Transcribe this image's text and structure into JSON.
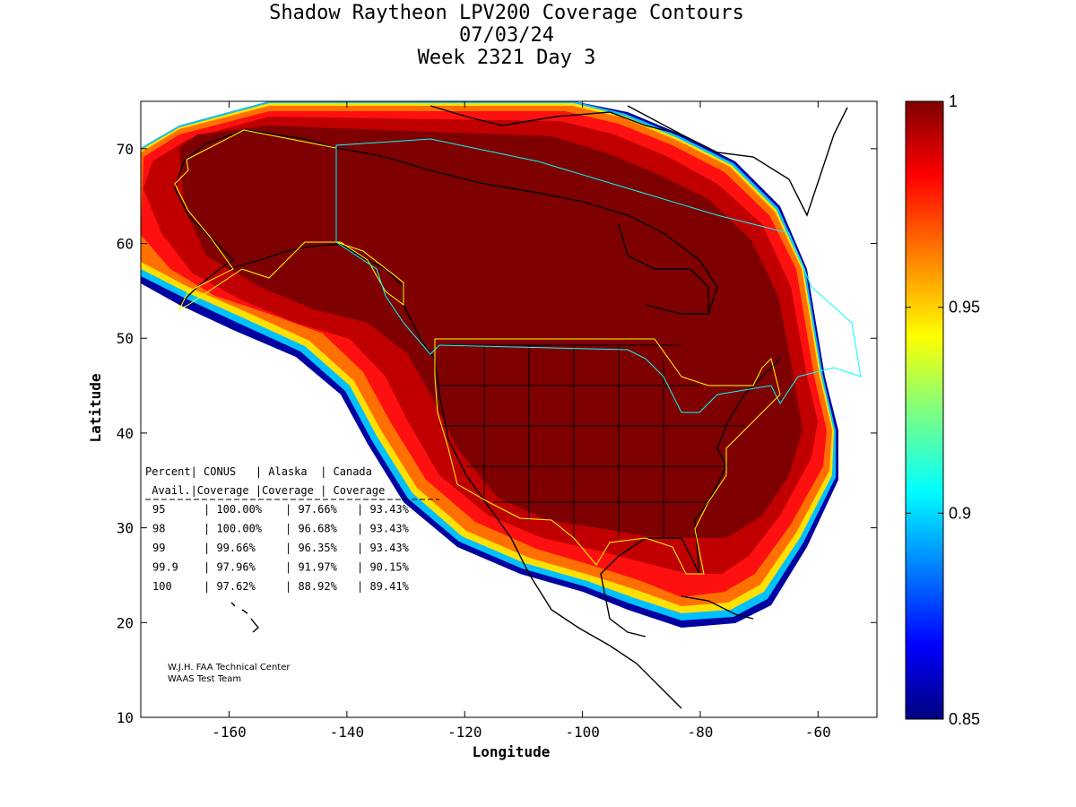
{
  "title": {
    "line1": "Shadow Raytheon LPV200 Coverage Contours",
    "line2": "07/03/24",
    "line3": "Week 2321 Day 3"
  },
  "axes": {
    "xlabel": "Longitude",
    "ylabel": "Latitude",
    "xticks": [
      "-160",
      "-140",
      "-120",
      "-100",
      "-80",
      "-60"
    ],
    "yticks": [
      "70",
      "60",
      "50",
      "40",
      "30",
      "20",
      "10"
    ],
    "xlim": [
      -175,
      -50
    ],
    "ylim": [
      10,
      75
    ]
  },
  "colorbar": {
    "range": [
      0.85,
      1
    ],
    "ticks": [
      "1",
      "0.95",
      "0.9",
      "0.85"
    ],
    "colormap": "jet",
    "colors": {
      "min": "#00007f",
      "low": "#0000ff",
      "mid_low": "#00ffff",
      "mid": "#ffff00",
      "mid_high": "#ff7f00",
      "high": "#ff0000",
      "max": "#7f0000"
    }
  },
  "coverage_table": {
    "header1": "Percent| CONUS   | Alaska  | Canada",
    "header2": " Avail.|Coverage |Coverage | Coverage",
    "rows": [
      {
        "percent": "95",
        "conus": "100.00%",
        "alaska": "97.66%",
        "canada": "93.43%"
      },
      {
        "percent": "98",
        "conus": "100.00%",
        "alaska": "96.68%",
        "canada": "93.43%"
      },
      {
        "percent": "99",
        "conus": "99.66%",
        "alaska": "96.35%",
        "canada": "93.43%"
      },
      {
        "percent": "99.9",
        "conus": "97.96%",
        "alaska": "91.97%",
        "canada": "90.15%"
      },
      {
        "percent": "100",
        "conus": "97.62%",
        "alaska": "88.92%",
        "canada": "89.41%"
      }
    ]
  },
  "credit": {
    "line1": "W.J.H. FAA Technical Center",
    "line2": "WAAS Test Team"
  },
  "colors": {
    "service_boundary_conus_alaska": "#ffff00",
    "service_boundary_canada": "#00ffff",
    "coast": "#000000"
  }
}
